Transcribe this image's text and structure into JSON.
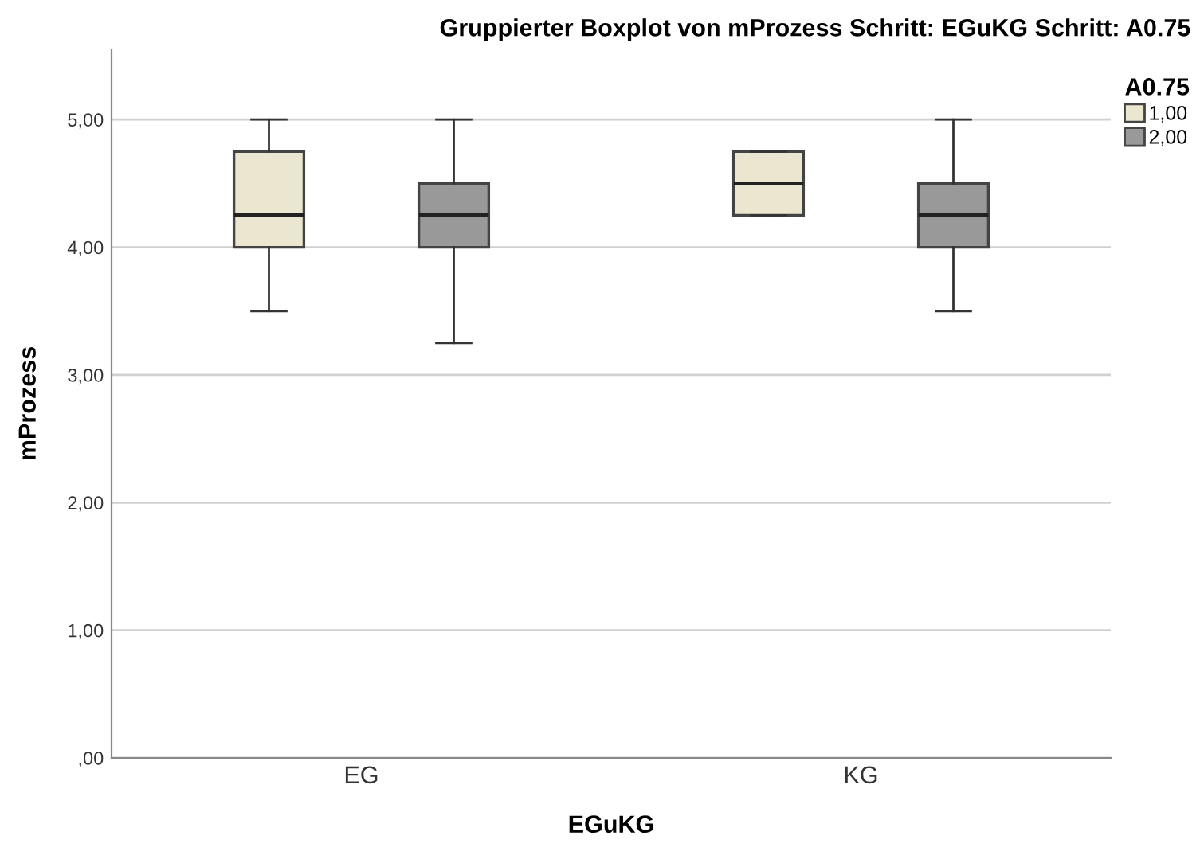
{
  "chart_data": {
    "type": "box",
    "title": "Gruppierter Boxplot von mProzess Schritt: EGuKG Schritt: A0.75",
    "xlabel": "EGuKG",
    "ylabel": "mProzess",
    "legend_title": "A0.75",
    "categories": [
      "EG",
      "KG"
    ],
    "series": [
      {
        "name": "1,00",
        "color": "#ebe6d0",
        "boxes": [
          {
            "low": 3.5,
            "q1": 4.0,
            "median": 4.25,
            "q3": 4.75,
            "high": 5.0
          },
          {
            "low": 4.25,
            "q1": 4.25,
            "median": 4.5,
            "q3": 4.75,
            "high": 4.75
          }
        ]
      },
      {
        "name": "2,00",
        "color": "#999999",
        "boxes": [
          {
            "low": 3.25,
            "q1": 4.0,
            "median": 4.25,
            "q3": 4.5,
            "high": 5.0
          },
          {
            "low": 3.5,
            "q1": 4.0,
            "median": 4.25,
            "q3": 4.5,
            "high": 5.0
          }
        ]
      }
    ],
    "ylim": [
      0,
      5.55
    ],
    "yticks": [
      {
        "value": 0,
        "label": ",00"
      },
      {
        "value": 1,
        "label": "1,00"
      },
      {
        "value": 2,
        "label": "2,00"
      },
      {
        "value": 3,
        "label": "3,00"
      },
      {
        "value": 4,
        "label": "4,00"
      },
      {
        "value": 5,
        "label": "5,00"
      }
    ],
    "grid": "y",
    "legend": "top right"
  }
}
